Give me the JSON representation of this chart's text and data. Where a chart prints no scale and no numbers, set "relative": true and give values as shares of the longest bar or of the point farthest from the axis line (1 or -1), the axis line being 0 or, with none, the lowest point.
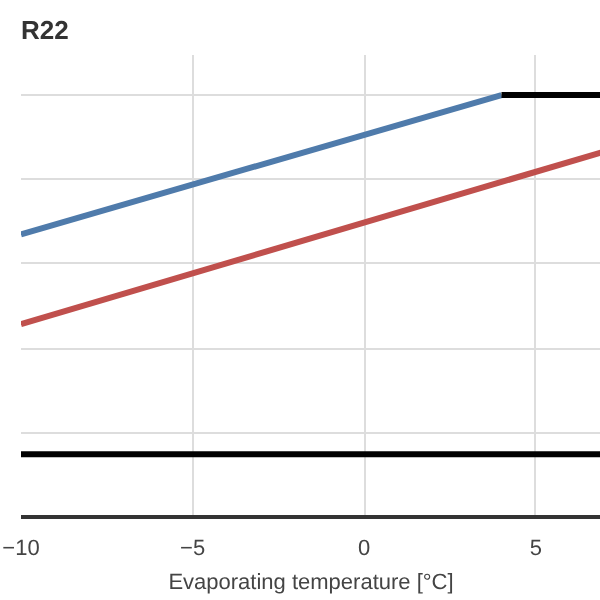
{
  "chart_data": {
    "type": "line",
    "title": "R22",
    "xlabel": "Evaporating temperature [°C]",
    "relative": true,
    "xlim": [
      -10,
      6.9
    ],
    "xticks": [
      -10,
      -5,
      0,
      5
    ],
    "grid": true,
    "line_style": "solid",
    "series": [
      {
        "color": "#4f7bab",
        "x": [
          -10,
          4
        ],
        "values": [
          0.67,
          1
        ]
      },
      {
        "color": "#000000",
        "x": [
          4,
          6.9
        ],
        "values": [
          1,
          1
        ]
      },
      {
        "color": "#c0504d",
        "x": [
          -10,
          6.9
        ],
        "values": [
          0.457,
          0.864
        ]
      },
      {
        "color": "#000000",
        "x": [
          -10,
          6.9
        ],
        "values": [
          0.149,
          0.149
        ]
      }
    ]
  }
}
